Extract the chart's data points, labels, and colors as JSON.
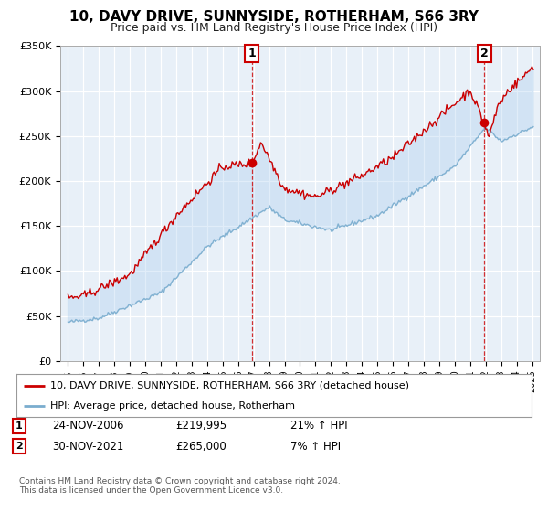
{
  "title": "10, DAVY DRIVE, SUNNYSIDE, ROTHERHAM, S66 3RY",
  "subtitle": "Price paid vs. HM Land Registry's House Price Index (HPI)",
  "ylim": [
    0,
    350000
  ],
  "yticks": [
    0,
    50000,
    100000,
    150000,
    200000,
    250000,
    300000,
    350000
  ],
  "ytick_labels": [
    "£0",
    "£50K",
    "£100K",
    "£150K",
    "£200K",
    "£250K",
    "£300K",
    "£350K"
  ],
  "xlim_start": 1994.5,
  "xlim_end": 2025.5,
  "sale1_x": 2006.9,
  "sale1_y": 219995,
  "sale1_label": "1",
  "sale2_x": 2021.92,
  "sale2_y": 265000,
  "sale2_label": "2",
  "line_color_red": "#cc0000",
  "line_color_blue": "#7aadce",
  "fill_color": "#ddeeff",
  "marker_box_color": "#cc0000",
  "legend_line1": "10, DAVY DRIVE, SUNNYSIDE, ROTHERHAM, S66 3RY (detached house)",
  "legend_line2": "HPI: Average price, detached house, Rotherham",
  "table_row1": [
    "1",
    "24-NOV-2006",
    "£219,995",
    "21% ↑ HPI"
  ],
  "table_row2": [
    "2",
    "30-NOV-2021",
    "£265,000",
    "7% ↑ HPI"
  ],
  "footnote": "Contains HM Land Registry data © Crown copyright and database right 2024.\nThis data is licensed under the Open Government Licence v3.0.",
  "bg_color": "#ffffff",
  "grid_color": "#cccccc"
}
